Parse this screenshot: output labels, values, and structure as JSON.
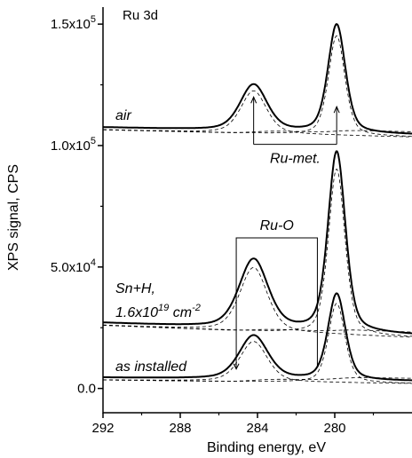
{
  "chart_data": {
    "type": "line",
    "title": "Ru 3d",
    "xlabel": "Binding energy, eV",
    "ylabel": "XPS signal, CPS",
    "xlim": [
      292,
      276
    ],
    "ylim": [
      -0.1,
      1.57
    ],
    "x_reversed": true,
    "x_ticks": [
      292,
      288,
      284,
      280
    ],
    "y_ticks": [
      {
        "value": 0.0,
        "label": "0.0"
      },
      {
        "value": 0.5,
        "label": "5.0x10",
        "exp": "4"
      },
      {
        "value": 1.0,
        "label": "1.0x10",
        "exp": "5"
      },
      {
        "value": 1.5,
        "label": "1.5x10",
        "exp": "5"
      }
    ],
    "y_unit_note": "values in units of 1e5 CPS",
    "series": [
      {
        "label": "air",
        "baseline": 1.075,
        "baseline_end": 1.045,
        "peaks": [
          {
            "position": 284.2,
            "height": 0.19,
            "width": 0.7
          },
          {
            "position": 279.9,
            "height": 0.445,
            "width": 0.45
          }
        ]
      },
      {
        "label_lines": [
          "Sn+H,",
          "1.6x10",
          "19",
          " cm",
          "-2"
        ],
        "baseline": 0.27,
        "baseline_end": 0.22,
        "peaks": [
          {
            "position": 284.2,
            "height": 0.285,
            "width": 0.75
          },
          {
            "position": 279.9,
            "height": 0.74,
            "width": 0.45
          }
        ]
      },
      {
        "label": "as installed",
        "baseline": 0.045,
        "baseline_end": 0.03,
        "peaks": [
          {
            "position": 284.2,
            "height": 0.18,
            "width": 0.75
          },
          {
            "position": 279.9,
            "height": 0.355,
            "width": 0.45
          }
        ]
      }
    ],
    "annotations": [
      {
        "text": "Ru-met.",
        "arrows_at": [
          284.2,
          279.9
        ]
      },
      {
        "text": "Ru-O",
        "box_x": [
          285.1,
          280.9
        ]
      }
    ]
  }
}
